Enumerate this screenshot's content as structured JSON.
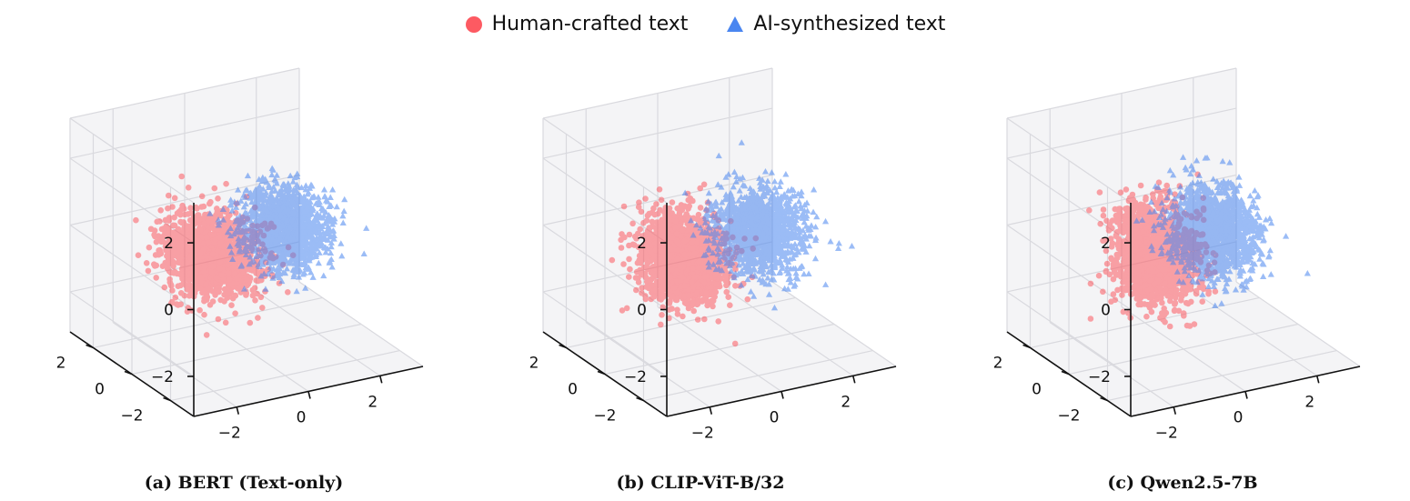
{
  "legend": {
    "position": "top-center",
    "items": [
      {
        "label": "Human-crafted text",
        "marker": "circle",
        "color": "#fd5a62"
      },
      {
        "label": "AI-synthesized text",
        "marker": "triangle",
        "color": "#4a86f0"
      }
    ]
  },
  "chart_data": [
    {
      "type": "scatter",
      "projection": "3d",
      "caption": "(a) BERT (Text-only)",
      "zlim": [
        -3.2,
        3.2
      ],
      "xlim": [
        -3.2,
        3.2
      ],
      "ylim": [
        -3.2,
        3.2
      ],
      "ticks": {
        "x": [
          -2,
          0,
          2
        ],
        "y": [
          -2,
          0,
          2
        ],
        "z": [
          -2,
          0,
          2
        ]
      },
      "grid": true,
      "series": [
        {
          "name": "Human-crafted text",
          "marker": "circle",
          "color": "#fd5a62",
          "count": 1500,
          "center": [
            -1.0,
            0.0,
            -0.2
          ],
          "spread": [
            1.0,
            1.2,
            0.9
          ]
        },
        {
          "name": "AI-synthesized text",
          "marker": "triangle",
          "color": "#4a86f0",
          "count": 1500,
          "center": [
            1.2,
            0.3,
            0.0
          ],
          "spread": [
            0.9,
            1.1,
            0.9
          ]
        }
      ]
    },
    {
      "type": "scatter",
      "projection": "3d",
      "caption": "(b) CLIP-ViT-B/32",
      "zlim": [
        -3.2,
        3.2
      ],
      "xlim": [
        -3.2,
        3.2
      ],
      "ylim": [
        -3.2,
        3.2
      ],
      "ticks": {
        "x": [
          -2,
          0,
          2
        ],
        "y": [
          -2,
          0,
          2
        ],
        "z": [
          -2,
          0,
          2
        ]
      },
      "grid": true,
      "series": [
        {
          "name": "Human-crafted text",
          "marker": "circle",
          "color": "#fd5a62",
          "count": 1500,
          "center": [
            -1.0,
            0.0,
            -0.3
          ],
          "spread": [
            0.85,
            1.2,
            1.0
          ]
        },
        {
          "name": "AI-synthesized text",
          "marker": "triangle",
          "color": "#4a86f0",
          "count": 1500,
          "center": [
            1.2,
            0.2,
            0.0
          ],
          "spread": [
            0.9,
            1.2,
            0.9
          ]
        }
      ]
    },
    {
      "type": "scatter",
      "projection": "3d",
      "caption": "(c) Qwen2.5-7B",
      "zlim": [
        -3.2,
        3.2
      ],
      "xlim": [
        -3.2,
        3.2
      ],
      "ylim": [
        -3.2,
        3.2
      ],
      "ticks": {
        "x": [
          -2,
          0,
          2
        ],
        "y": [
          -2,
          0,
          2
        ],
        "z": [
          -2,
          0,
          2
        ]
      },
      "grid": true,
      "series": [
        {
          "name": "Human-crafted text",
          "marker": "circle",
          "color": "#fd5a62",
          "count": 1500,
          "center": [
            -0.8,
            0.0,
            -0.1
          ],
          "spread": [
            0.9,
            1.1,
            1.1
          ]
        },
        {
          "name": "AI-synthesized text",
          "marker": "triangle",
          "color": "#4a86f0",
          "count": 1500,
          "center": [
            1.0,
            0.3,
            0.0
          ],
          "spread": [
            0.9,
            1.2,
            1.0
          ]
        }
      ]
    }
  ]
}
